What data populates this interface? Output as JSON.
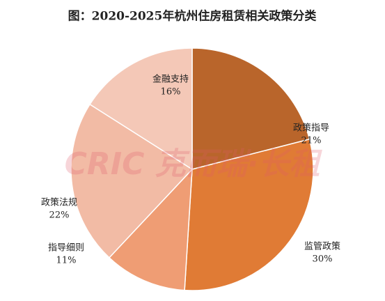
{
  "chart_data": {
    "type": "pie",
    "title": "图：2020-2025年杭州住房租赁相关政策分类",
    "categories": [
      "政策指导",
      "监管政策",
      "指导细则",
      "政策法规",
      "金融支持"
    ],
    "values": [
      21,
      30,
      11,
      22,
      16
    ],
    "value_labels": [
      "21%",
      "30%",
      "11%",
      "22%",
      "16%"
    ],
    "colors": [
      "#b9652b",
      "#e07b35",
      "#ef9d74",
      "#f2bba5",
      "#f4c8b7"
    ],
    "watermark": "CRIC 克而瑞·长租"
  }
}
